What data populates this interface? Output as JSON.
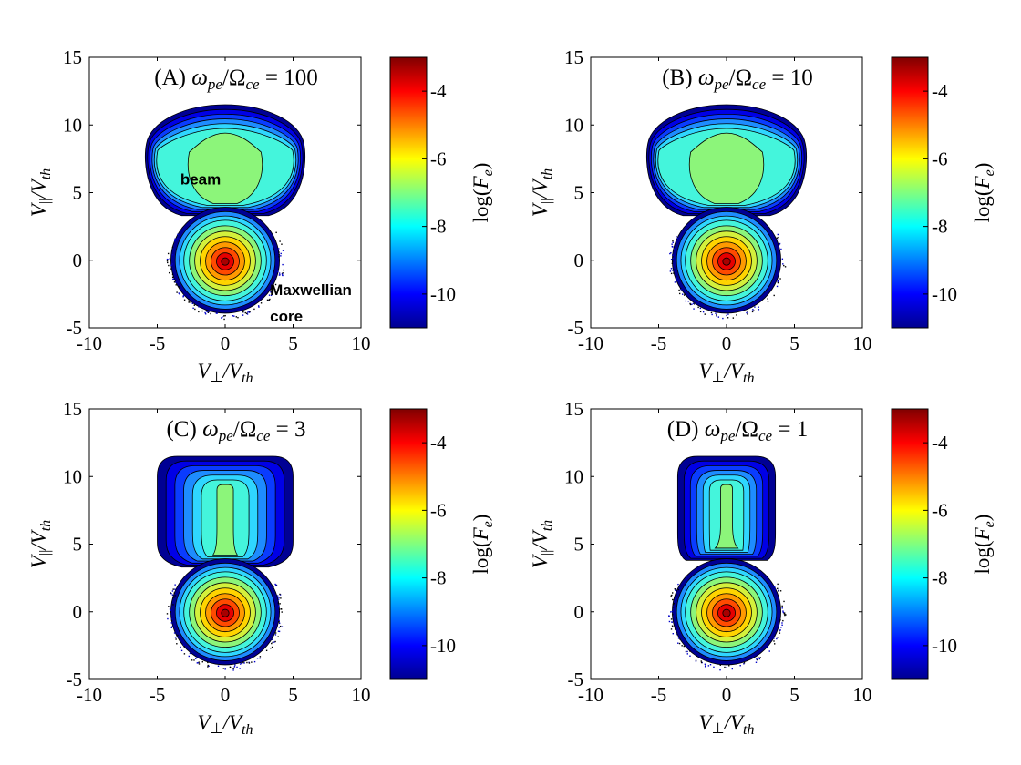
{
  "chart_data": [
    {
      "type": "heatmap",
      "panel_id": "A",
      "title": "(A) ωpe/Ωce = 100",
      "title_parts": {
        "letter": "(A)",
        "ratio": "100"
      },
      "xlabel": "V⊥/Vth",
      "ylabel": "V||/Vth",
      "xlim": [
        -10,
        10
      ],
      "ylim": [
        -5,
        15
      ],
      "xticks": [
        "-10",
        "-5",
        "0",
        "5",
        "10"
      ],
      "yticks": [
        "-5",
        "0",
        "5",
        "10",
        "15"
      ],
      "shape": {
        "beam_top": 11.5,
        "beam_half_width": 5.8,
        "beam_style": "drop",
        "neck_center": 3.0,
        "neck_half_width": 3.2,
        "core_radius": 4.0
      },
      "annotations": [
        "beam",
        "Maxwellian",
        "core"
      ],
      "colorbar": {
        "label": "log(Fe)",
        "range": [
          -11,
          -3
        ],
        "ticks": [
          "-4",
          "-6",
          "-8",
          "-10"
        ]
      }
    },
    {
      "type": "heatmap",
      "panel_id": "B",
      "title": "(B) ωpe/Ωce = 10",
      "title_parts": {
        "letter": "(B)",
        "ratio": "10"
      },
      "xlabel": "V⊥/Vth",
      "ylabel": "V||/Vth",
      "xlim": [
        -10,
        10
      ],
      "ylim": [
        -5,
        15
      ],
      "xticks": [
        "-10",
        "-5",
        "0",
        "5",
        "10"
      ],
      "yticks": [
        "-5",
        "0",
        "5",
        "10",
        "15"
      ],
      "shape": {
        "beam_top": 11.5,
        "beam_half_width": 5.8,
        "beam_style": "drop",
        "neck_center": 3.0,
        "neck_half_width": 3.2,
        "core_radius": 4.0
      },
      "annotations": [],
      "colorbar": {
        "label": "log(Fe)",
        "range": [
          -11,
          -3
        ],
        "ticks": [
          "-4",
          "-6",
          "-8",
          "-10"
        ]
      }
    },
    {
      "type": "heatmap",
      "panel_id": "C",
      "title": "(C) ωpe/Ωce = 3",
      "title_parts": {
        "letter": "(C)",
        "ratio": "3"
      },
      "xlabel": "V⊥/Vth",
      "ylabel": "V||/Vth",
      "xlim": [
        -10,
        10
      ],
      "ylim": [
        -5,
        15
      ],
      "xticks": [
        "-10",
        "-5",
        "0",
        "5",
        "10"
      ],
      "yticks": [
        "-5",
        "0",
        "5",
        "10",
        "15"
      ],
      "shape": {
        "beam_top": 11.5,
        "beam_half_width": 5.0,
        "beam_style": "rect",
        "neck_center": 3.0,
        "neck_half_width": 3.2,
        "core_radius": 4.0
      },
      "annotations": [],
      "colorbar": {
        "label": "log(Fe)",
        "range": [
          -11,
          -3
        ],
        "ticks": [
          "-4",
          "-6",
          "-8",
          "-10"
        ]
      }
    },
    {
      "type": "heatmap",
      "panel_id": "D",
      "title": "(D) ωpe/Ωce = 1",
      "title_parts": {
        "letter": "(D)",
        "ratio": "1"
      },
      "xlabel": "V⊥/Vth",
      "ylabel": "V||/Vth",
      "xlim": [
        -10,
        10
      ],
      "ylim": [
        -5,
        15
      ],
      "xticks": [
        "-10",
        "-5",
        "0",
        "5",
        "10"
      ],
      "yticks": [
        "-5",
        "0",
        "5",
        "10",
        "15"
      ],
      "shape": {
        "beam_top": 11.5,
        "beam_half_width": 3.6,
        "beam_style": "rect",
        "neck_center": 3.5,
        "neck_half_width": 3.0,
        "core_radius": 4.0
      },
      "annotations": [],
      "colorbar": {
        "label": "log(Fe)",
        "range": [
          -11,
          -3
        ],
        "ticks": [
          "-4",
          "-6",
          "-8",
          "-10"
        ]
      }
    }
  ]
}
